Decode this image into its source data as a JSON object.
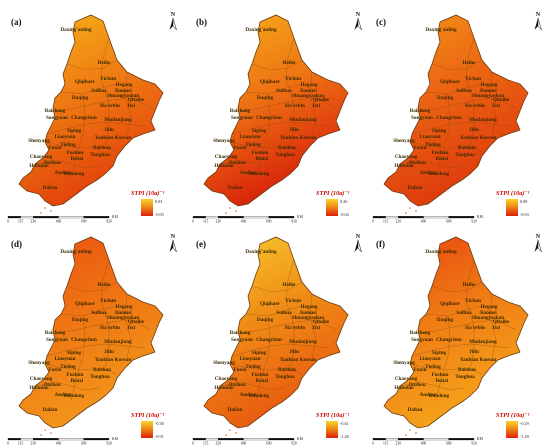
{
  "panels": [
    {
      "label": "(a)",
      "legend_max": "0.03",
      "legend_min": "-0.03",
      "fill_top": "#f7b51a",
      "fill_mid": "#ef7a12",
      "fill_low": "#e3420b"
    },
    {
      "label": "(b)",
      "legend_max": "0.26",
      "legend_min": "-0.04",
      "fill_top": "#f6b01a",
      "fill_mid": "#ee7213",
      "fill_low": "#d8200a"
    },
    {
      "label": "(c)",
      "legend_max": "0.09",
      "legend_min": "-0.03",
      "fill_top": "#f39317",
      "fill_mid": "#eb6212",
      "fill_low": "#de3a0c"
    },
    {
      "label": "(d)",
      "legend_max": "-0.38",
      "legend_min": "-0.91",
      "fill_top": "#ea4f10",
      "fill_mid": "#ef7613",
      "fill_low": "#f2961a"
    },
    {
      "label": "(e)",
      "legend_max": "-0.61",
      "legend_min": "-1.26",
      "fill_top": "#f6cd2e",
      "fill_mid": "#f08b16",
      "fill_low": "#e85a10"
    },
    {
      "label": "(f)",
      "legend_max": "-0.29",
      "legend_min": "-1.29",
      "fill_top": "#e8440f",
      "fill_mid": "#f07c14",
      "fill_low": "#f5a31a"
    }
  ],
  "legend_title": "STPI (10a)⁻¹",
  "north_label": "N",
  "scale_bar": {
    "ticks": [
      "0",
      "115",
      "230",
      "460",
      "690",
      "920"
    ],
    "unit": "KM"
  },
  "cities": [
    "Daxing'anling",
    "Heihe",
    "Qiqihaer",
    "Yichun",
    "Hegang",
    "Jiamusi",
    "Shuangyashan",
    "Suihua",
    "Daqing",
    "Qitaihe",
    "Jixi",
    "Ha'erbin",
    "Baicheng",
    "Songyuan",
    "Mudanjiang",
    "Changchun",
    "Jilin",
    "Yanbian Korean",
    "Siping",
    "Liaoyuan",
    "Shenyang",
    "Baishan",
    "Tonghua",
    "Fushun",
    "Benxi",
    "Fuxin",
    "Chaoyang",
    "Huludao",
    "Jinzhou",
    "Anshan",
    "Dandong",
    "Dalian",
    "Tieling"
  ]
}
